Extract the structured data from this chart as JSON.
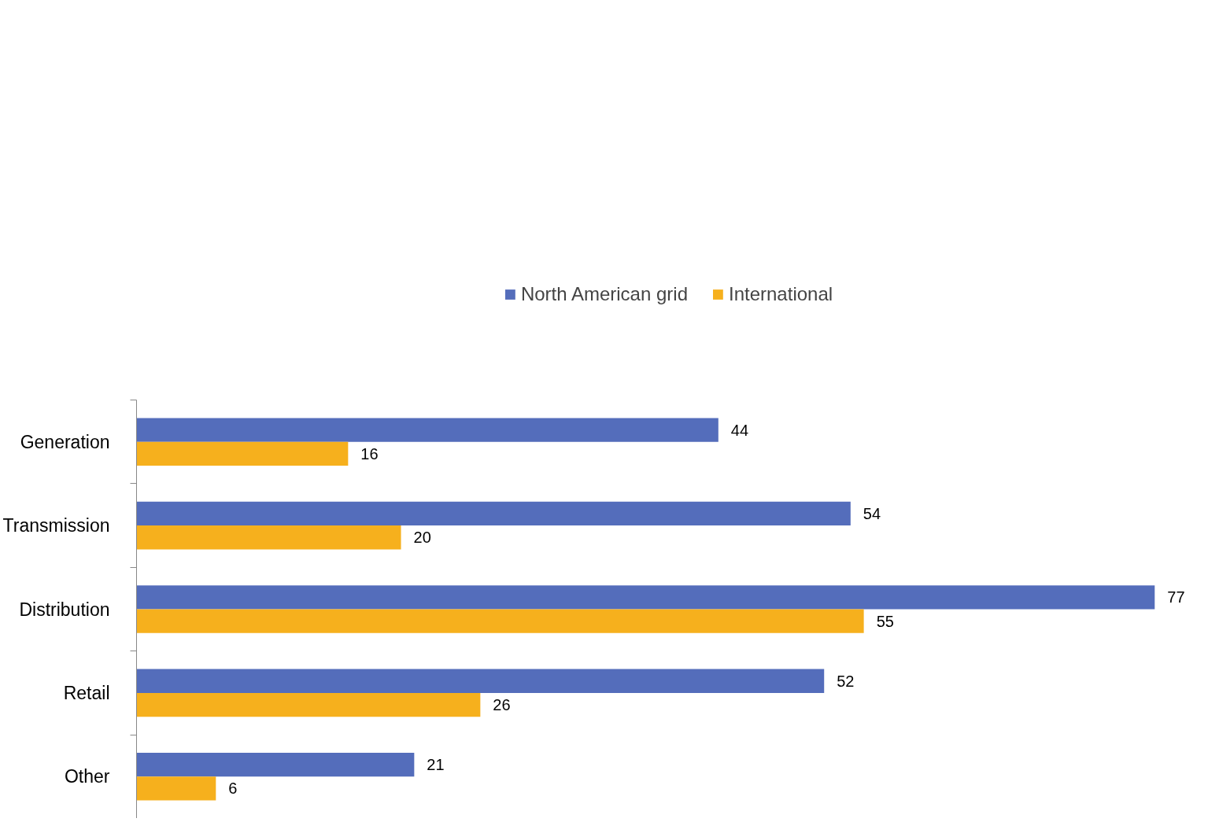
{
  "chart_data": {
    "type": "bar",
    "orientation": "horizontal",
    "categories": [
      "Generation",
      "Transmission",
      "Distribution",
      "Retail",
      "Other"
    ],
    "series": [
      {
        "name": "North American grid",
        "color": "#546dbb",
        "values": [
          44,
          54,
          77,
          52,
          21
        ]
      },
      {
        "name": "International",
        "color": "#f6b01d",
        "values": [
          16,
          20,
          55,
          26,
          6
        ]
      }
    ],
    "data_labels": true,
    "legend": "top",
    "grid": false
  }
}
